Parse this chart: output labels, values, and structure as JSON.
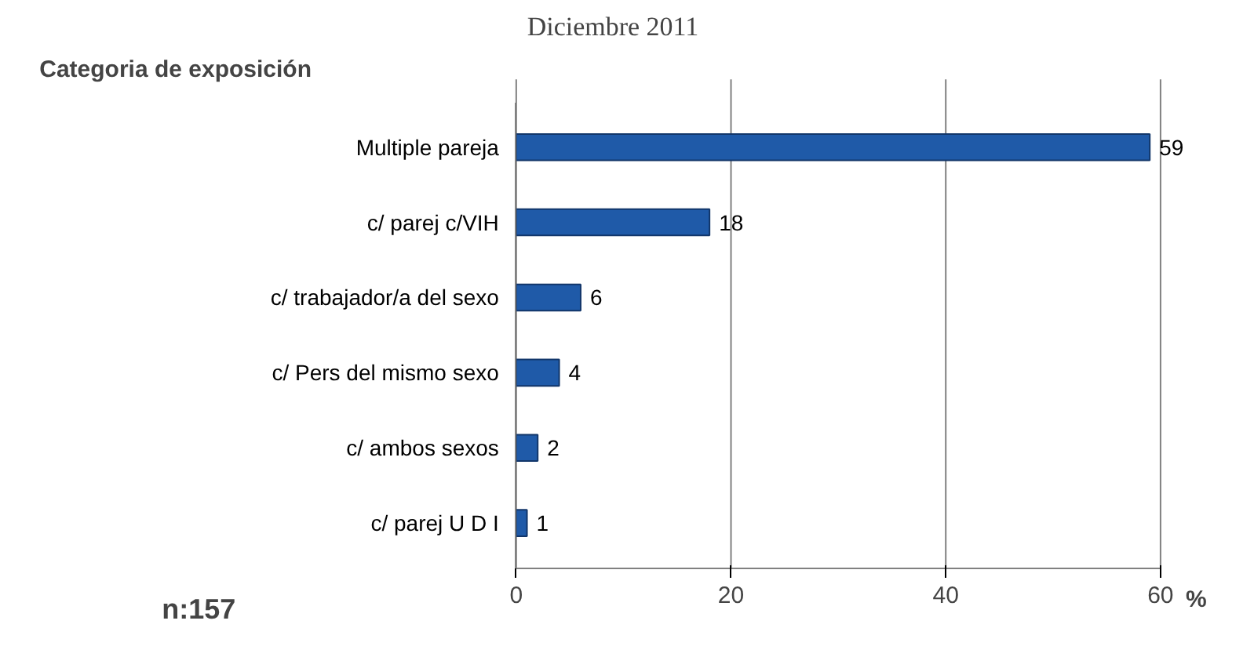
{
  "chart_data": {
    "type": "bar",
    "orientation": "horizontal",
    "title": "Diciembre 2011",
    "ylabel": "Categoria de exposición",
    "xlabel": "%",
    "categories": [
      "Multiple pareja",
      "c/ parej c/VIH",
      "c/ trabajador/a del sexo",
      "c/ Pers del mismo sexo",
      "c/ ambos sexos",
      "c/ parej U D I"
    ],
    "values": [
      59,
      18,
      6,
      4,
      2,
      1
    ],
    "color": "#1f5aa8",
    "data_labels": true,
    "xlim": [
      0,
      60
    ],
    "xticks": [
      0,
      20,
      40,
      60
    ],
    "grid": "x",
    "annotations": [
      "n:157"
    ]
  }
}
